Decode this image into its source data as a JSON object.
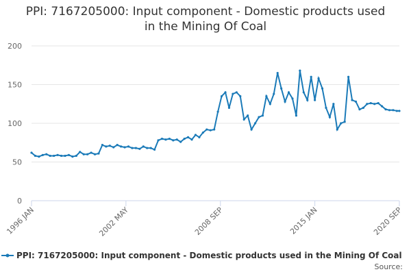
{
  "chart_data": {
    "type": "line",
    "title": "PPI: 7167205000: Input component - Domestic products used in the Mining Of Coal",
    "x": [
      "1996-01",
      "1996-04",
      "1996-07",
      "1996-10",
      "1997-01",
      "1997-04",
      "1997-07",
      "1997-10",
      "1998-01",
      "1998-04",
      "1998-07",
      "1998-10",
      "1999-01",
      "1999-04",
      "1999-07",
      "1999-10",
      "2000-01",
      "2000-04",
      "2000-07",
      "2000-10",
      "2001-01",
      "2001-04",
      "2001-07",
      "2001-10",
      "2002-01",
      "2002-04",
      "2002-07",
      "2002-10",
      "2003-01",
      "2003-04",
      "2003-07",
      "2003-10",
      "2004-01",
      "2004-04",
      "2004-07",
      "2004-10",
      "2005-01",
      "2005-04",
      "2005-07",
      "2005-10",
      "2006-01",
      "2006-04",
      "2006-07",
      "2006-10",
      "2007-01",
      "2007-04",
      "2007-07",
      "2007-10",
      "2008-01",
      "2008-04",
      "2008-07",
      "2008-10",
      "2009-01",
      "2009-04",
      "2009-07",
      "2009-10",
      "2010-01",
      "2010-04",
      "2010-07",
      "2010-10",
      "2011-01",
      "2011-04",
      "2011-07",
      "2011-10",
      "2012-01",
      "2012-04",
      "2012-07",
      "2012-10",
      "2013-01",
      "2013-04",
      "2013-07",
      "2013-10",
      "2014-01",
      "2014-04",
      "2014-07",
      "2014-10",
      "2015-01",
      "2015-04",
      "2015-07",
      "2015-10",
      "2016-01",
      "2016-04",
      "2016-07",
      "2016-10",
      "2017-01",
      "2017-04",
      "2017-07",
      "2017-10",
      "2018-01",
      "2018-04",
      "2018-07",
      "2018-10",
      "2019-01",
      "2019-04",
      "2019-07",
      "2019-10",
      "2020-01",
      "2020-04",
      "2020-07",
      "2020-09"
    ],
    "series": [
      {
        "name": "PPI: 7167205000: Input component - Domestic products used in the Mining Of Coal",
        "color": "#1a7ab8",
        "values": [
          62,
          58,
          57,
          59,
          60,
          58,
          58,
          59,
          58,
          58,
          59,
          57,
          58,
          63,
          60,
          60,
          62,
          60,
          61,
          72,
          70,
          71,
          69,
          72,
          70,
          69,
          70,
          68,
          68,
          67,
          70,
          68,
          68,
          66,
          78,
          80,
          79,
          80,
          78,
          79,
          76,
          80,
          82,
          79,
          85,
          82,
          88,
          92,
          91,
          92,
          115,
          135,
          140,
          120,
          138,
          140,
          135,
          105,
          110,
          92,
          100,
          108,
          110,
          135,
          125,
          138,
          165,
          145,
          128,
          140,
          132,
          110,
          168,
          140,
          130,
          160,
          130,
          158,
          145,
          120,
          108,
          125,
          92,
          100,
          102,
          160,
          130,
          128,
          118,
          120,
          125,
          126,
          125,
          126,
          122,
          118,
          117,
          117,
          116,
          116
        ]
      }
    ],
    "xlim": [
      "1996-01",
      "2020-09"
    ],
    "xticks": [
      {
        "value": "1996-01",
        "label": "1996 JAN"
      },
      {
        "value": "2002-05",
        "label": "2002 MAY"
      },
      {
        "value": "2008-09",
        "label": "2008 SEP"
      },
      {
        "value": "2015-01",
        "label": "2015 JAN"
      },
      {
        "value": "2020-09",
        "label": "2020 SEP"
      }
    ],
    "ylim": [
      0,
      200
    ],
    "yticks": [
      0,
      50,
      100,
      150,
      200
    ],
    "grid": true,
    "source": "Source:"
  }
}
